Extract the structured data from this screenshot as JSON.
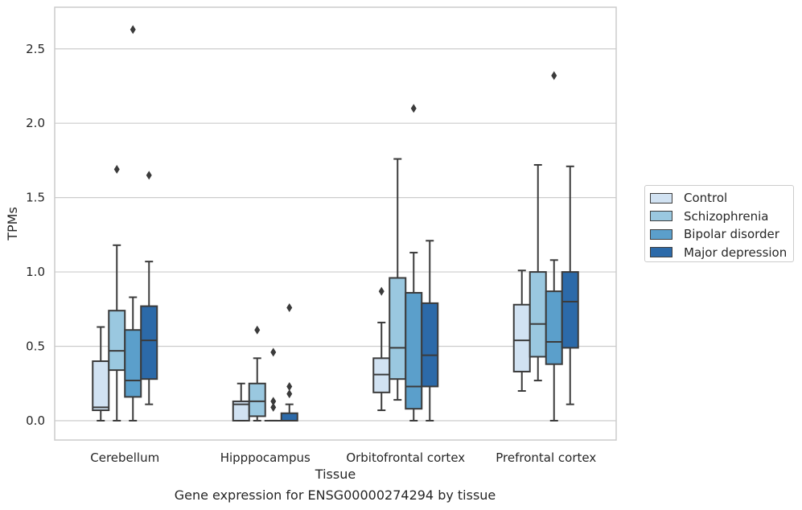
{
  "chart_data": {
    "type": "box",
    "xlabel": "Tissue",
    "ylabel": "TPMs",
    "ylim": [
      -0.13,
      2.78
    ],
    "yticks": [
      0.0,
      0.5,
      1.0,
      1.5,
      2.0,
      2.5
    ],
    "ytick_labels": [
      "0.0",
      "0.5",
      "1.0",
      "1.5",
      "2.0",
      "2.5"
    ],
    "grid": "horizontal",
    "legend_position": "right",
    "categories": [
      "Cerebellum",
      "Hipppocampus",
      "Orbitofrontal cortex",
      "Prefrontal cortex"
    ],
    "series": [
      {
        "name": "Control",
        "color": "#d1e2f2",
        "boxes": [
          {
            "min": 0.0,
            "q1": 0.07,
            "median": 0.09,
            "q3": 0.4,
            "max": 0.63,
            "outliers": []
          },
          {
            "min": 0.0,
            "q1": 0.0,
            "median": 0.11,
            "q3": 0.13,
            "max": 0.25,
            "outliers": []
          },
          {
            "min": 0.07,
            "q1": 0.19,
            "median": 0.31,
            "q3": 0.42,
            "max": 0.66,
            "outliers": [
              0.87
            ]
          },
          {
            "min": 0.2,
            "q1": 0.33,
            "median": 0.54,
            "q3": 0.78,
            "max": 1.01,
            "outliers": []
          }
        ]
      },
      {
        "name": "Schizophrenia",
        "color": "#9ac8e0",
        "boxes": [
          {
            "min": 0.0,
            "q1": 0.34,
            "median": 0.47,
            "q3": 0.74,
            "max": 1.18,
            "outliers": [
              1.69
            ]
          },
          {
            "min": 0.0,
            "q1": 0.03,
            "median": 0.13,
            "q3": 0.25,
            "max": 0.42,
            "outliers": [
              0.61
            ]
          },
          {
            "min": 0.14,
            "q1": 0.28,
            "median": 0.49,
            "q3": 0.96,
            "max": 1.76,
            "outliers": []
          },
          {
            "min": 0.27,
            "q1": 0.43,
            "median": 0.65,
            "q3": 1.0,
            "max": 1.72,
            "outliers": []
          }
        ]
      },
      {
        "name": "Bipolar disorder",
        "color": "#5b9fcb",
        "boxes": [
          {
            "min": 0.0,
            "q1": 0.16,
            "median": 0.27,
            "q3": 0.61,
            "max": 0.83,
            "outliers": [
              2.63
            ]
          },
          {
            "min": 0.0,
            "q1": 0.0,
            "median": 0.0,
            "q3": 0.0,
            "max": 0.0,
            "outliers": [
              0.46,
              0.13,
              0.09
            ]
          },
          {
            "min": 0.0,
            "q1": 0.08,
            "median": 0.23,
            "q3": 0.86,
            "max": 1.13,
            "outliers": [
              2.1
            ]
          },
          {
            "min": 0.0,
            "q1": 0.38,
            "median": 0.53,
            "q3": 0.87,
            "max": 1.08,
            "outliers": [
              2.32
            ]
          }
        ]
      },
      {
        "name": "Major depression",
        "color": "#2c6aa9",
        "boxes": [
          {
            "min": 0.11,
            "q1": 0.28,
            "median": 0.54,
            "q3": 0.77,
            "max": 1.07,
            "outliers": [
              1.65
            ]
          },
          {
            "min": 0.0,
            "q1": 0.0,
            "median": 0.0,
            "q3": 0.05,
            "max": 0.11,
            "outliers": [
              0.76,
              0.23,
              0.18
            ]
          },
          {
            "min": 0.0,
            "q1": 0.23,
            "median": 0.44,
            "q3": 0.79,
            "max": 1.21,
            "outliers": []
          },
          {
            "min": 0.11,
            "q1": 0.49,
            "median": 0.8,
            "q3": 1.0,
            "max": 1.71,
            "outliers": []
          }
        ]
      }
    ]
  },
  "caption": "Gene expression for ENSG00000274294 by tissue"
}
